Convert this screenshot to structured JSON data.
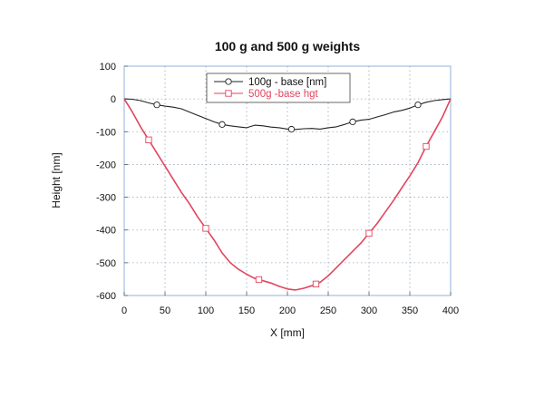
{
  "chart_data": {
    "type": "line",
    "title": "100 g and 500 g weights",
    "xlabel": "X [mm]",
    "ylabel": "Height [nm]",
    "xlim": [
      0,
      400
    ],
    "ylim": [
      -600,
      100
    ],
    "xticks": [
      0,
      50,
      100,
      150,
      200,
      250,
      300,
      350,
      400
    ],
    "yticks": [
      100,
      0,
      -100,
      -200,
      -300,
      -400,
      -500,
      -600
    ],
    "grid": true,
    "legend_position": "top-center",
    "series": [
      {
        "name": "100g - base [nm]",
        "color": "#222222",
        "marker": "circle",
        "x": [
          0,
          10,
          20,
          30,
          40,
          50,
          60,
          70,
          80,
          90,
          100,
          110,
          120,
          130,
          140,
          150,
          160,
          170,
          180,
          190,
          200,
          210,
          220,
          230,
          240,
          250,
          260,
          270,
          280,
          290,
          300,
          310,
          320,
          330,
          340,
          350,
          360,
          370,
          380,
          390,
          400
        ],
        "y": [
          0,
          -1,
          -5,
          -12,
          -18,
          -22,
          -25,
          -30,
          -40,
          -50,
          -60,
          -70,
          -78,
          -82,
          -85,
          -88,
          -80,
          -82,
          -86,
          -88,
          -92,
          -93,
          -91,
          -90,
          -92,
          -88,
          -85,
          -78,
          -70,
          -65,
          -62,
          -55,
          -48,
          -40,
          -35,
          -28,
          -18,
          -10,
          -5,
          -2,
          0
        ],
        "marker_x": [
          40,
          120,
          205,
          280,
          360
        ]
      },
      {
        "name": "500g -base hgt",
        "color": "#e2455e",
        "marker": "square",
        "x": [
          0,
          10,
          20,
          30,
          40,
          50,
          60,
          70,
          80,
          90,
          100,
          110,
          120,
          130,
          140,
          150,
          160,
          170,
          180,
          190,
          200,
          210,
          220,
          230,
          240,
          250,
          260,
          270,
          280,
          290,
          300,
          310,
          320,
          330,
          340,
          350,
          360,
          370,
          380,
          390,
          400
        ],
        "y": [
          0,
          -40,
          -85,
          -125,
          -165,
          -205,
          -245,
          -285,
          -320,
          -360,
          -395,
          -430,
          -470,
          -500,
          -520,
          -535,
          -548,
          -555,
          -562,
          -572,
          -580,
          -583,
          -578,
          -570,
          -560,
          -540,
          -515,
          -490,
          -465,
          -440,
          -410,
          -380,
          -345,
          -310,
          -272,
          -235,
          -195,
          -145,
          -100,
          -55,
          0
        ],
        "marker_x": [
          30,
          100,
          165,
          235,
          300,
          370
        ]
      }
    ]
  }
}
